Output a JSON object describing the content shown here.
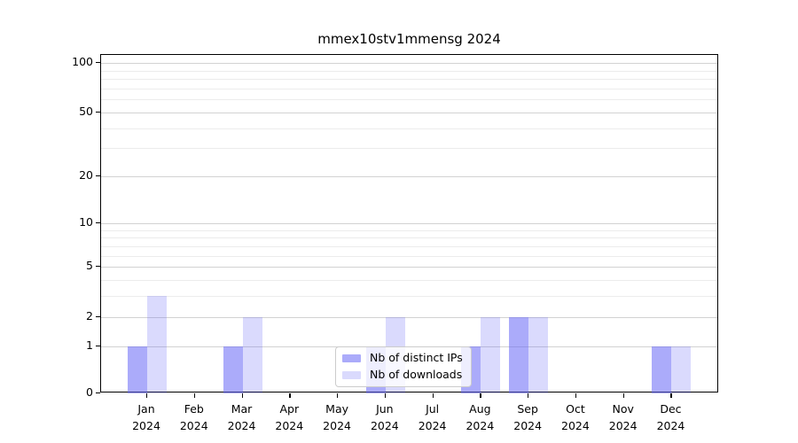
{
  "title": "mmex10stv1mmensg 2024",
  "chart_data": {
    "type": "bar",
    "title": "mmex10stv1mmensg 2024",
    "categories": [
      "Jan",
      "Feb",
      "Mar",
      "Apr",
      "May",
      "Jun",
      "Jul",
      "Aug",
      "Sep",
      "Oct",
      "Nov",
      "Dec"
    ],
    "year_label": "2024",
    "series": [
      {
        "name": "Nb of distinct IPs",
        "color": "rgba(102,102,245,0.55)",
        "values": [
          1,
          0,
          1,
          0,
          0,
          1,
          0,
          1,
          2,
          0,
          0,
          1
        ]
      },
      {
        "name": "Nb of downloads",
        "color": "rgba(102,102,245,0.24)",
        "values": [
          3,
          0,
          2,
          0,
          0,
          2,
          0,
          2,
          2,
          0,
          0,
          1
        ]
      }
    ],
    "y_axis": {
      "scale": "log1p",
      "tick_labels": [
        100,
        50,
        20,
        10,
        5,
        2,
        1,
        0
      ],
      "major_gridlines": [
        1,
        2,
        5,
        10,
        20,
        50,
        100
      ],
      "minor_gridlines": [
        3,
        4,
        6,
        7,
        8,
        9,
        30,
        40,
        60,
        70,
        80,
        90
      ],
      "ylim": [
        0,
        116
      ]
    },
    "legend": {
      "position": "lower center"
    },
    "grid": true
  }
}
